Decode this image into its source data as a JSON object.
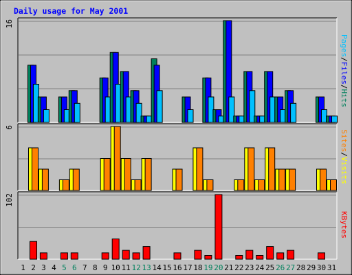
{
  "chart_data": {
    "type": "bar",
    "title": "Daily usage for May 2001",
    "days": [
      "1",
      "2",
      "3",
      "4",
      "5",
      "6",
      "7",
      "8",
      "9",
      "10",
      "11",
      "12",
      "13",
      "14",
      "15",
      "16",
      "17",
      "18",
      "19",
      "20",
      "21",
      "22",
      "23",
      "24",
      "25",
      "26",
      "27",
      "28",
      "29",
      "30",
      "31"
    ],
    "weekend_days": [
      "5",
      "6",
      "12",
      "13",
      "19",
      "20",
      "26",
      "27"
    ],
    "panels": [
      {
        "name": "hits-files-pages",
        "ymax_label": "16",
        "ymax": 16,
        "legend": [
          "Pages",
          "/",
          "Files",
          "/",
          "Hits"
        ],
        "series": [
          {
            "name": "Hits",
            "color": "#00805c",
            "values": [
              0,
              9,
              4,
              0,
              4,
              5,
              0,
              0,
              7,
              11,
              8,
              5,
              1,
              10,
              0,
              0,
              4,
              0,
              7,
              2,
              16,
              1,
              8,
              1,
              8,
              4,
              5,
              0,
              0,
              4,
              1
            ]
          },
          {
            "name": "Files",
            "color": "#0000ff",
            "values": [
              0,
              9,
              4,
              0,
              4,
              5,
              0,
              0,
              7,
              11,
              8,
              5,
              1,
              9,
              0,
              0,
              4,
              0,
              7,
              2,
              16,
              1,
              8,
              1,
              8,
              4,
              5,
              0,
              0,
              4,
              1
            ]
          },
          {
            "name": "Pages",
            "color": "#00c0ff",
            "values": [
              0,
              6,
              2,
              0,
              2,
              3,
              0,
              0,
              4,
              6,
              4,
              3,
              1,
              5,
              0,
              0,
              2,
              0,
              4,
              1,
              4,
              1,
              5,
              1,
              4,
              2,
              3,
              0,
              0,
              2,
              1
            ]
          }
        ]
      },
      {
        "name": "visits-sites",
        "ymax_label": "6",
        "ymax": 6,
        "legend": [
          "Sites",
          "/",
          "Visits"
        ],
        "series": [
          {
            "name": "Visits",
            "color": "#ffff00",
            "values": [
              0,
              4,
              2,
              0,
              1,
              2,
              0,
              0,
              3,
              6,
              3,
              1,
              3,
              0,
              0,
              2,
              0,
              4,
              1,
              0,
              0,
              1,
              4,
              1,
              4,
              2,
              2,
              0,
              0,
              2,
              1
            ]
          },
          {
            "name": "Sites",
            "color": "#ff8000",
            "values": [
              0,
              4,
              2,
              0,
              1,
              2,
              0,
              0,
              3,
              6,
              3,
              1,
              3,
              0,
              0,
              2,
              0,
              4,
              1,
              0,
              0,
              1,
              4,
              1,
              4,
              2,
              2,
              0,
              0,
              2,
              1
            ]
          }
        ]
      },
      {
        "name": "kbytes",
        "ymax_label": "102",
        "ymax": 102,
        "legend": [
          "KBytes"
        ],
        "series": [
          {
            "name": "KBytes",
            "color": "#ff0000",
            "values": [
              0,
              28,
              10,
              0,
              10,
              10,
              0,
              0,
              10,
              32,
              14,
              10,
              20,
              0,
              0,
              10,
              0,
              14,
              6,
              102,
              0,
              6,
              14,
              6,
              20,
              10,
              14,
              0,
              0,
              10,
              0
            ]
          }
        ]
      }
    ],
    "colors": {
      "background": "#c0c0c0",
      "title": "#0000ff",
      "axis_label": "#000000",
      "weekend_label": "#00805c",
      "gridline": "#808080"
    }
  }
}
